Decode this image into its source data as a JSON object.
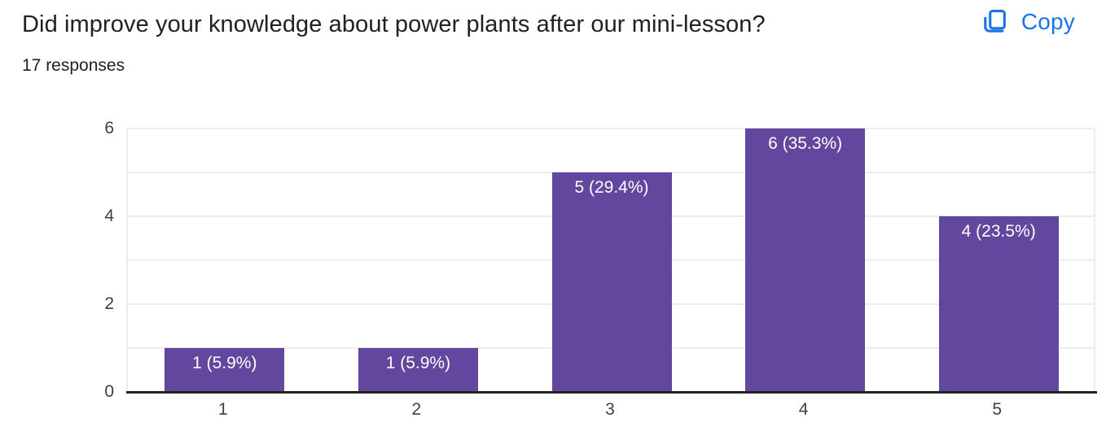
{
  "header": {
    "title": "Did improve your knowledge about power plants after our mini-lesson?",
    "responses_label": "17 responses",
    "copy_label": "Copy",
    "copy_icon": "copy-icon"
  },
  "colors": {
    "bar_fill": "#63479e",
    "accent_blue": "#1a73e8",
    "text_dark": "#202124",
    "axis_text": "#3c4043",
    "gridline": "#ececec",
    "baseline": "#222222",
    "bar_label_text": "#ffffff",
    "background": "#ffffff"
  },
  "chart_data": {
    "type": "bar",
    "title": "Did improve your knowledge about power plants after our mini-lesson?",
    "subtitle": "17 responses",
    "total_responses": 17,
    "categories": [
      "1",
      "2",
      "3",
      "4",
      "5"
    ],
    "values": [
      1,
      1,
      5,
      6,
      4
    ],
    "percentages": [
      5.9,
      5.9,
      29.4,
      35.3,
      23.5
    ],
    "bar_labels": [
      "1 (5.9%)",
      "1 (5.9%)",
      "5 (29.4%)",
      "6 (35.3%)",
      "4 (23.5%)"
    ],
    "xlabel": "",
    "ylabel": "",
    "yticks": [
      0,
      2,
      4,
      6
    ],
    "ylim": [
      0,
      6
    ],
    "gridlines_at": [
      1,
      2,
      3,
      4,
      5,
      6
    ],
    "grid": true,
    "legend": "none"
  }
}
